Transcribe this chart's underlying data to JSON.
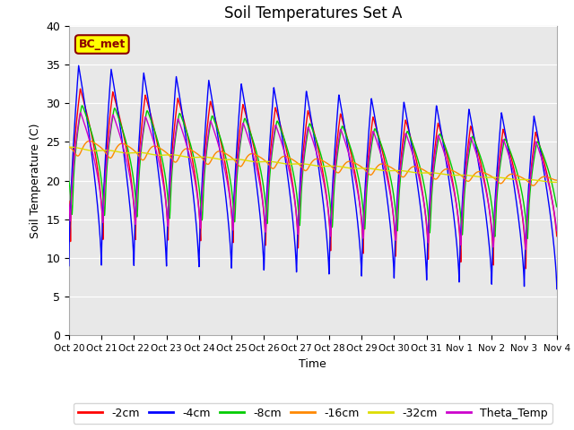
{
  "title": "Soil Temperatures Set A",
  "xlabel": "Time",
  "ylabel": "Soil Temperature (C)",
  "ylim": [
    0,
    40
  ],
  "series": [
    "-2cm",
    "-4cm",
    "-8cm",
    "-16cm",
    "-32cm",
    "Theta_Temp"
  ],
  "colors": [
    "#ff0000",
    "#0000ff",
    "#00cc00",
    "#ff8800",
    "#dddd00",
    "#cc00cc"
  ],
  "xtick_labels": [
    "Oct 20",
    "Oct 21",
    "Oct 22",
    "Oct 23",
    "Oct 24",
    "Oct 25",
    "Oct 26",
    "Oct 27",
    "Oct 28",
    "Oct 29",
    "Oct 30",
    "Oct 31",
    "Nov 1",
    "Nov 2",
    "Nov 3",
    "Nov 4"
  ],
  "annotation_text": "BC_met",
  "bg_color": "#e8e8e8",
  "fig_bg": "#ffffff",
  "title_fontsize": 12
}
